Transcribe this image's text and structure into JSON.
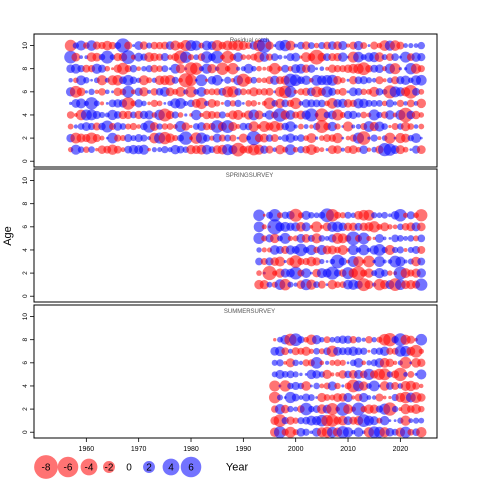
{
  "chart_data": {
    "type": "scatter",
    "kind": "bubble residual plot",
    "ylabel": "Age",
    "xlabel": "",
    "x_ticks": [
      1960,
      1970,
      1980,
      1990,
      2000,
      2010,
      2020
    ],
    "y_ticks": [
      0,
      2,
      4,
      6,
      8,
      10
    ],
    "xlim": [
      1950,
      2027
    ],
    "ylim": [
      -0.5,
      11
    ],
    "colors": {
      "positive": "#0000ff",
      "negative": "#ff0000",
      "alpha": 0.55
    },
    "panels": [
      {
        "title": "Residual catch",
        "years": [
          1957,
          2024
        ],
        "ages": [
          1,
          10
        ],
        "seed": 11
      },
      {
        "title": "SPRINGSURVEY",
        "years": [
          1993,
          2024
        ],
        "ages": [
          1,
          7
        ],
        "seed": 23
      },
      {
        "title": "SUMMERSURVEY",
        "years": [
          1996,
          2024
        ],
        "ages": [
          0,
          8
        ],
        "seed": 37
      }
    ],
    "legend": {
      "items": [
        "-8",
        "-6",
        "-4",
        "-2",
        "0",
        "2",
        "4",
        "6"
      ],
      "values": [
        -8,
        -6,
        -4,
        -2,
        0,
        2,
        4,
        6
      ],
      "label": "Year"
    }
  }
}
